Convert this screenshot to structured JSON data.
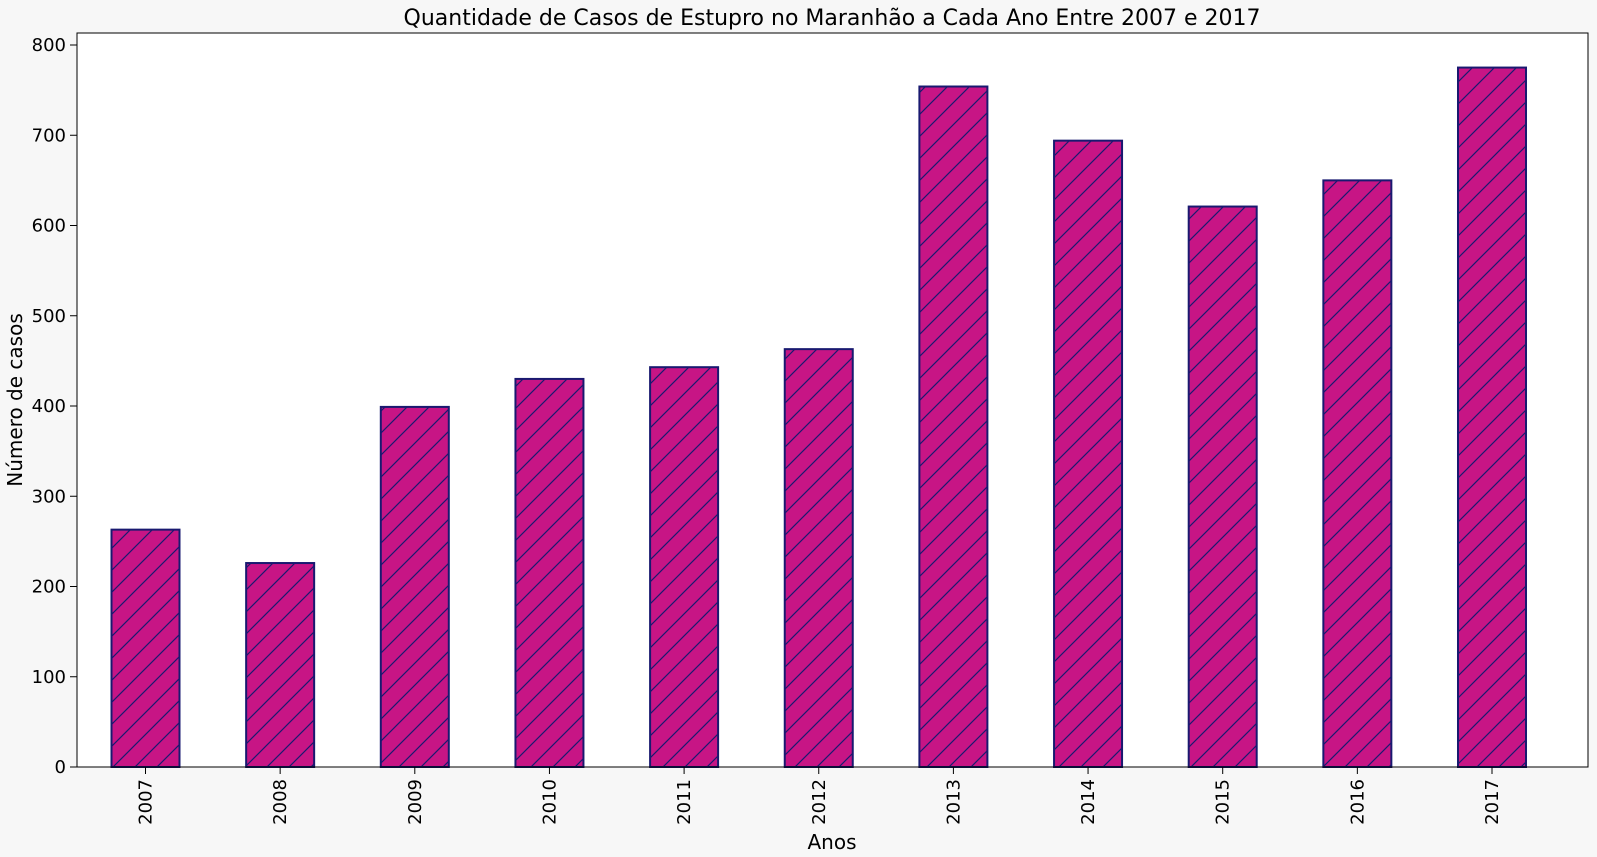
{
  "chart_data": {
    "type": "bar",
    "title": "Quantidade de Casos de Estupro no Maranhão a Cada Ano Entre 2007 e 2017",
    "xlabel": "Anos",
    "ylabel": "Número de casos",
    "categories": [
      "2007",
      "2008",
      "2009",
      "2010",
      "2011",
      "2012",
      "2013",
      "2014",
      "2015",
      "2016",
      "2017"
    ],
    "values": [
      263,
      226,
      399,
      430,
      443,
      463,
      754,
      694,
      621,
      650,
      775
    ],
    "ylim": [
      0,
      815
    ],
    "yticks": [
      0,
      100,
      200,
      300,
      400,
      500,
      600,
      700,
      800
    ],
    "grid": false,
    "legend": "none",
    "bar_color": "#c71585",
    "bar_edge_color": "#191970",
    "hatch": "diagonal"
  }
}
